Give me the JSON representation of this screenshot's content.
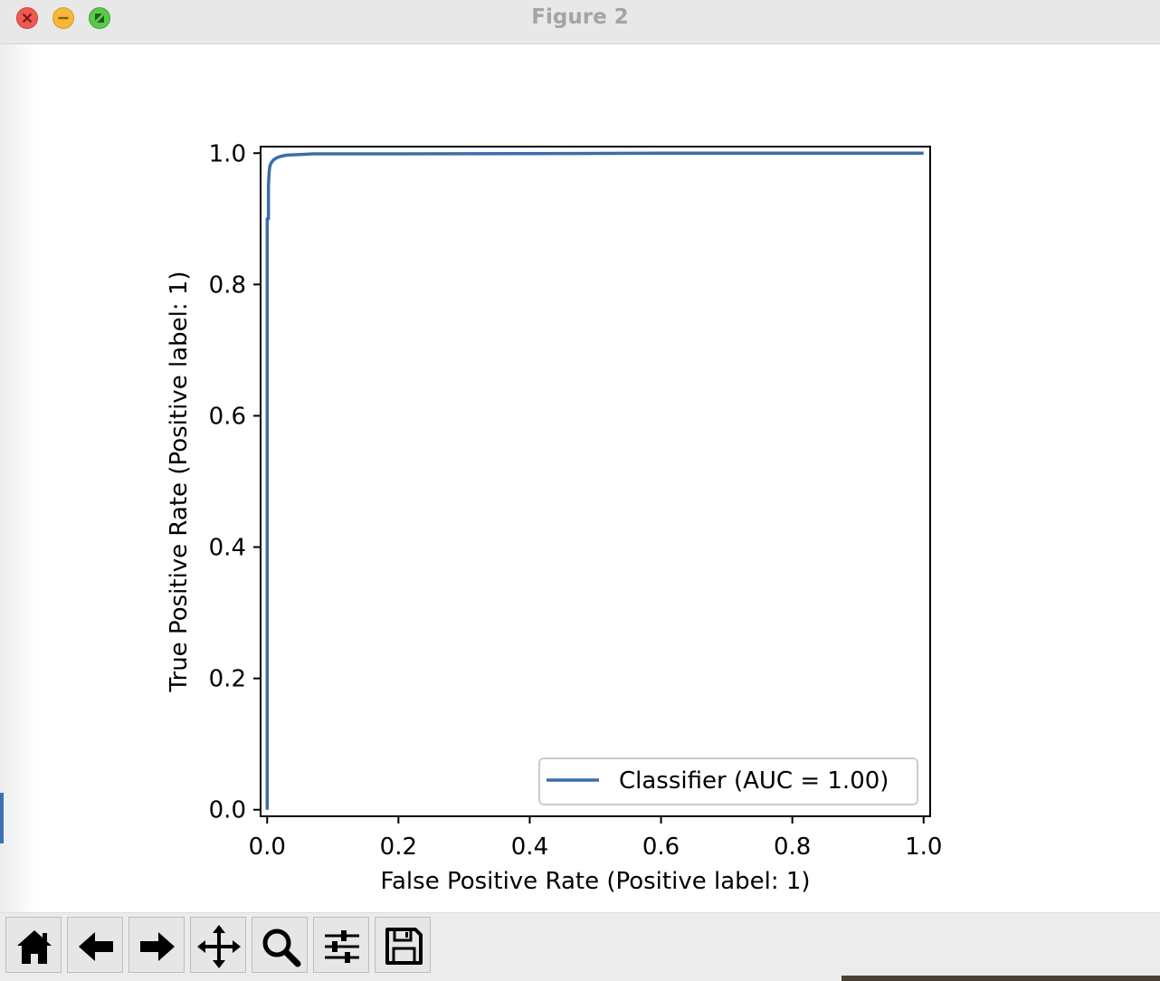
{
  "window": {
    "title": "Figure 2"
  },
  "toolbar": {
    "buttons": [
      {
        "name": "home-button",
        "icon": "home-icon"
      },
      {
        "name": "back-button",
        "icon": "arrow-left-icon"
      },
      {
        "name": "forward-button",
        "icon": "arrow-right-icon"
      },
      {
        "name": "pan-button",
        "icon": "move-icon"
      },
      {
        "name": "zoom-button",
        "icon": "magnifier-icon"
      },
      {
        "name": "configure-subplots-button",
        "icon": "sliders-icon"
      },
      {
        "name": "save-button",
        "icon": "floppy-disk-icon"
      }
    ]
  },
  "chart_data": {
    "type": "line",
    "title": "",
    "xlabel": "False Positive Rate (Positive label: 1)",
    "ylabel": "True Positive Rate (Positive label: 1)",
    "xlim": [
      -0.01,
      1.01
    ],
    "ylim": [
      -0.01,
      1.01
    ],
    "x_ticks": [
      "0.0",
      "0.2",
      "0.4",
      "0.6",
      "0.8",
      "1.0"
    ],
    "y_ticks": [
      "0.0",
      "0.2",
      "0.4",
      "0.6",
      "0.8",
      "1.0"
    ],
    "grid": false,
    "legend": {
      "position": "lower-right",
      "entries": [
        "Classifier (AUC = 1.00)"
      ]
    },
    "series": [
      {
        "name": "Classifier (AUC = 1.00)",
        "color": "#3a6ea5",
        "x": [
          0.0,
          0.0,
          0.002,
          0.002,
          0.003,
          0.004,
          0.006,
          0.01,
          0.015,
          0.02,
          0.03,
          0.05,
          0.07,
          0.2,
          0.47,
          0.6,
          1.0
        ],
        "y": [
          0.0,
          0.9,
          0.9,
          0.95,
          0.97,
          0.98,
          0.985,
          0.99,
          0.993,
          0.995,
          0.997,
          0.998,
          0.999,
          0.999,
          0.9995,
          1.0,
          1.0
        ]
      }
    ]
  }
}
